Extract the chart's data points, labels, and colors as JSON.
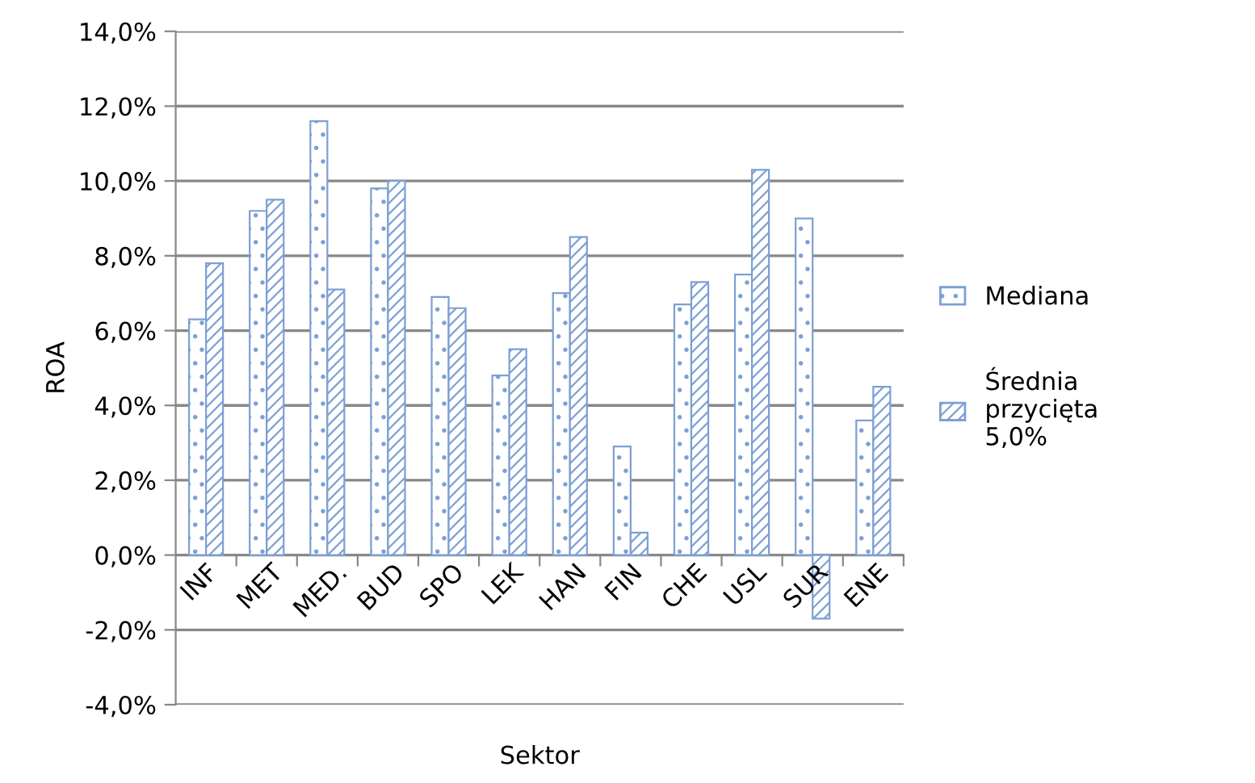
{
  "chart_data": {
    "type": "bar",
    "xlabel": "Sektor",
    "ylabel": "ROA",
    "categories": [
      "INF",
      "MET",
      "MED.",
      "BUD",
      "SPO",
      "LEK",
      "HAN",
      "FIN",
      "CHE",
      "USL",
      "SUR",
      "ENE"
    ],
    "series": [
      {
        "name": "Mediana",
        "color": "#7da0d4",
        "values": [
          6.3,
          9.2,
          11.6,
          9.8,
          6.9,
          4.8,
          7.0,
          2.9,
          6.7,
          7.5,
          9.0,
          3.6
        ]
      },
      {
        "name": "Średnia\nprzycięta\n5,0%",
        "color": "#7da0d4",
        "values": [
          7.8,
          9.5,
          7.1,
          10.0,
          6.6,
          5.5,
          8.5,
          0.6,
          7.3,
          10.3,
          -1.7,
          4.5
        ]
      }
    ],
    "ylim": [
      -4,
      14
    ],
    "yticks": [
      {
        "value": -4,
        "label": "-4,0%"
      },
      {
        "value": -2,
        "label": "-2,0%"
      },
      {
        "value": 0,
        "label": "0,0%"
      },
      {
        "value": 2,
        "label": "2,0%"
      },
      {
        "value": 4,
        "label": "4,0%"
      },
      {
        "value": 6,
        "label": "6,0%"
      },
      {
        "value": 8,
        "label": "8,0%"
      },
      {
        "value": 10,
        "label": "10,0%"
      },
      {
        "value": 12,
        "label": "12,0%"
      },
      {
        "value": 14,
        "label": "14,0%"
      }
    ],
    "grid": "y",
    "legend": "right"
  }
}
